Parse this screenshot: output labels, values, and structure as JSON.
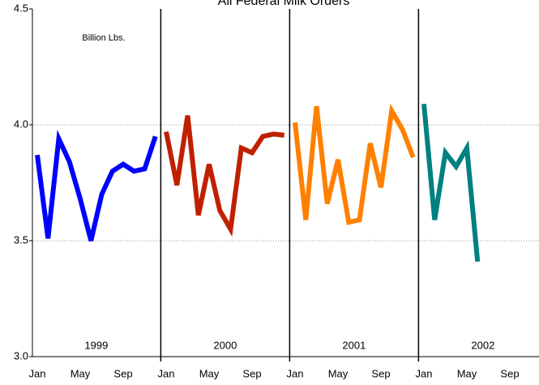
{
  "chart_data": {
    "type": "line",
    "title": "All Federal Milk Orders",
    "annotation": "Billion Lbs.",
    "categories": [
      "Jan",
      null,
      null,
      null,
      "May",
      null,
      null,
      null,
      "Sep",
      null,
      null,
      null,
      "Jan",
      null,
      null,
      null,
      "May",
      null,
      null,
      null,
      "Sep",
      null,
      null,
      null,
      "Jan",
      null,
      null,
      null,
      "May",
      null,
      null,
      null,
      "Sep",
      null,
      null,
      null,
      "Jan",
      null,
      null,
      null,
      "May",
      null,
      null,
      null,
      "Sep",
      null,
      null,
      null
    ],
    "year_labels": [
      "1999",
      "2000",
      "2001",
      "2002"
    ],
    "series": [
      {
        "name": "1999",
        "color": "#0000ff",
        "values": [
          3.87,
          3.51,
          3.94,
          3.84,
          3.68,
          3.5,
          3.7,
          3.8,
          3.83,
          3.8,
          3.81,
          3.95,
          null,
          null,
          null,
          null,
          null,
          null,
          null,
          null,
          null,
          null,
          null,
          null,
          null,
          null,
          null,
          null,
          null,
          null,
          null,
          null,
          null,
          null,
          null,
          null,
          null,
          null,
          null,
          null,
          null,
          null,
          null,
          null,
          null,
          null,
          null,
          null
        ]
      },
      {
        "name": "2000",
        "color": "#c02000",
        "values": [
          null,
          null,
          null,
          null,
          null,
          null,
          null,
          null,
          null,
          null,
          null,
          null,
          3.97,
          3.74,
          4.04,
          3.61,
          3.83,
          3.63,
          3.55,
          3.9,
          3.88,
          3.95,
          3.96,
          3.955,
          null,
          null,
          null,
          null,
          null,
          null,
          null,
          null,
          null,
          null,
          null,
          null,
          null,
          null,
          null,
          null,
          null,
          null,
          null,
          null,
          null,
          null,
          null,
          null
        ]
      },
      {
        "name": "2001",
        "color": "#ff8000",
        "values": [
          null,
          null,
          null,
          null,
          null,
          null,
          null,
          null,
          null,
          null,
          null,
          null,
          null,
          null,
          null,
          null,
          null,
          null,
          null,
          null,
          null,
          null,
          null,
          null,
          4.01,
          3.59,
          4.08,
          3.66,
          3.85,
          3.58,
          3.59,
          3.92,
          3.73,
          4.06,
          3.98,
          3.86,
          null,
          null,
          null,
          null,
          null,
          null,
          null,
          null,
          null,
          null,
          null,
          null
        ]
      },
      {
        "name": "2002",
        "color": "#008080",
        "values": [
          null,
          null,
          null,
          null,
          null,
          null,
          null,
          null,
          null,
          null,
          null,
          null,
          null,
          null,
          null,
          null,
          null,
          null,
          null,
          null,
          null,
          null,
          null,
          null,
          null,
          null,
          null,
          null,
          null,
          null,
          null,
          null,
          null,
          null,
          null,
          null,
          4.09,
          3.59,
          3.88,
          3.82,
          3.9,
          3.41,
          null,
          null,
          null,
          null,
          null,
          null
        ]
      }
    ],
    "ylim": [
      3.0,
      4.5
    ],
    "yticks": [
      {
        "value": 3.0,
        "label": "3.0"
      },
      {
        "value": 3.5,
        "label": "3.5"
      },
      {
        "value": 4.0,
        "label": "4.0"
      },
      {
        "value": 4.5,
        "label": "4.5"
      }
    ],
    "grid": true
  }
}
